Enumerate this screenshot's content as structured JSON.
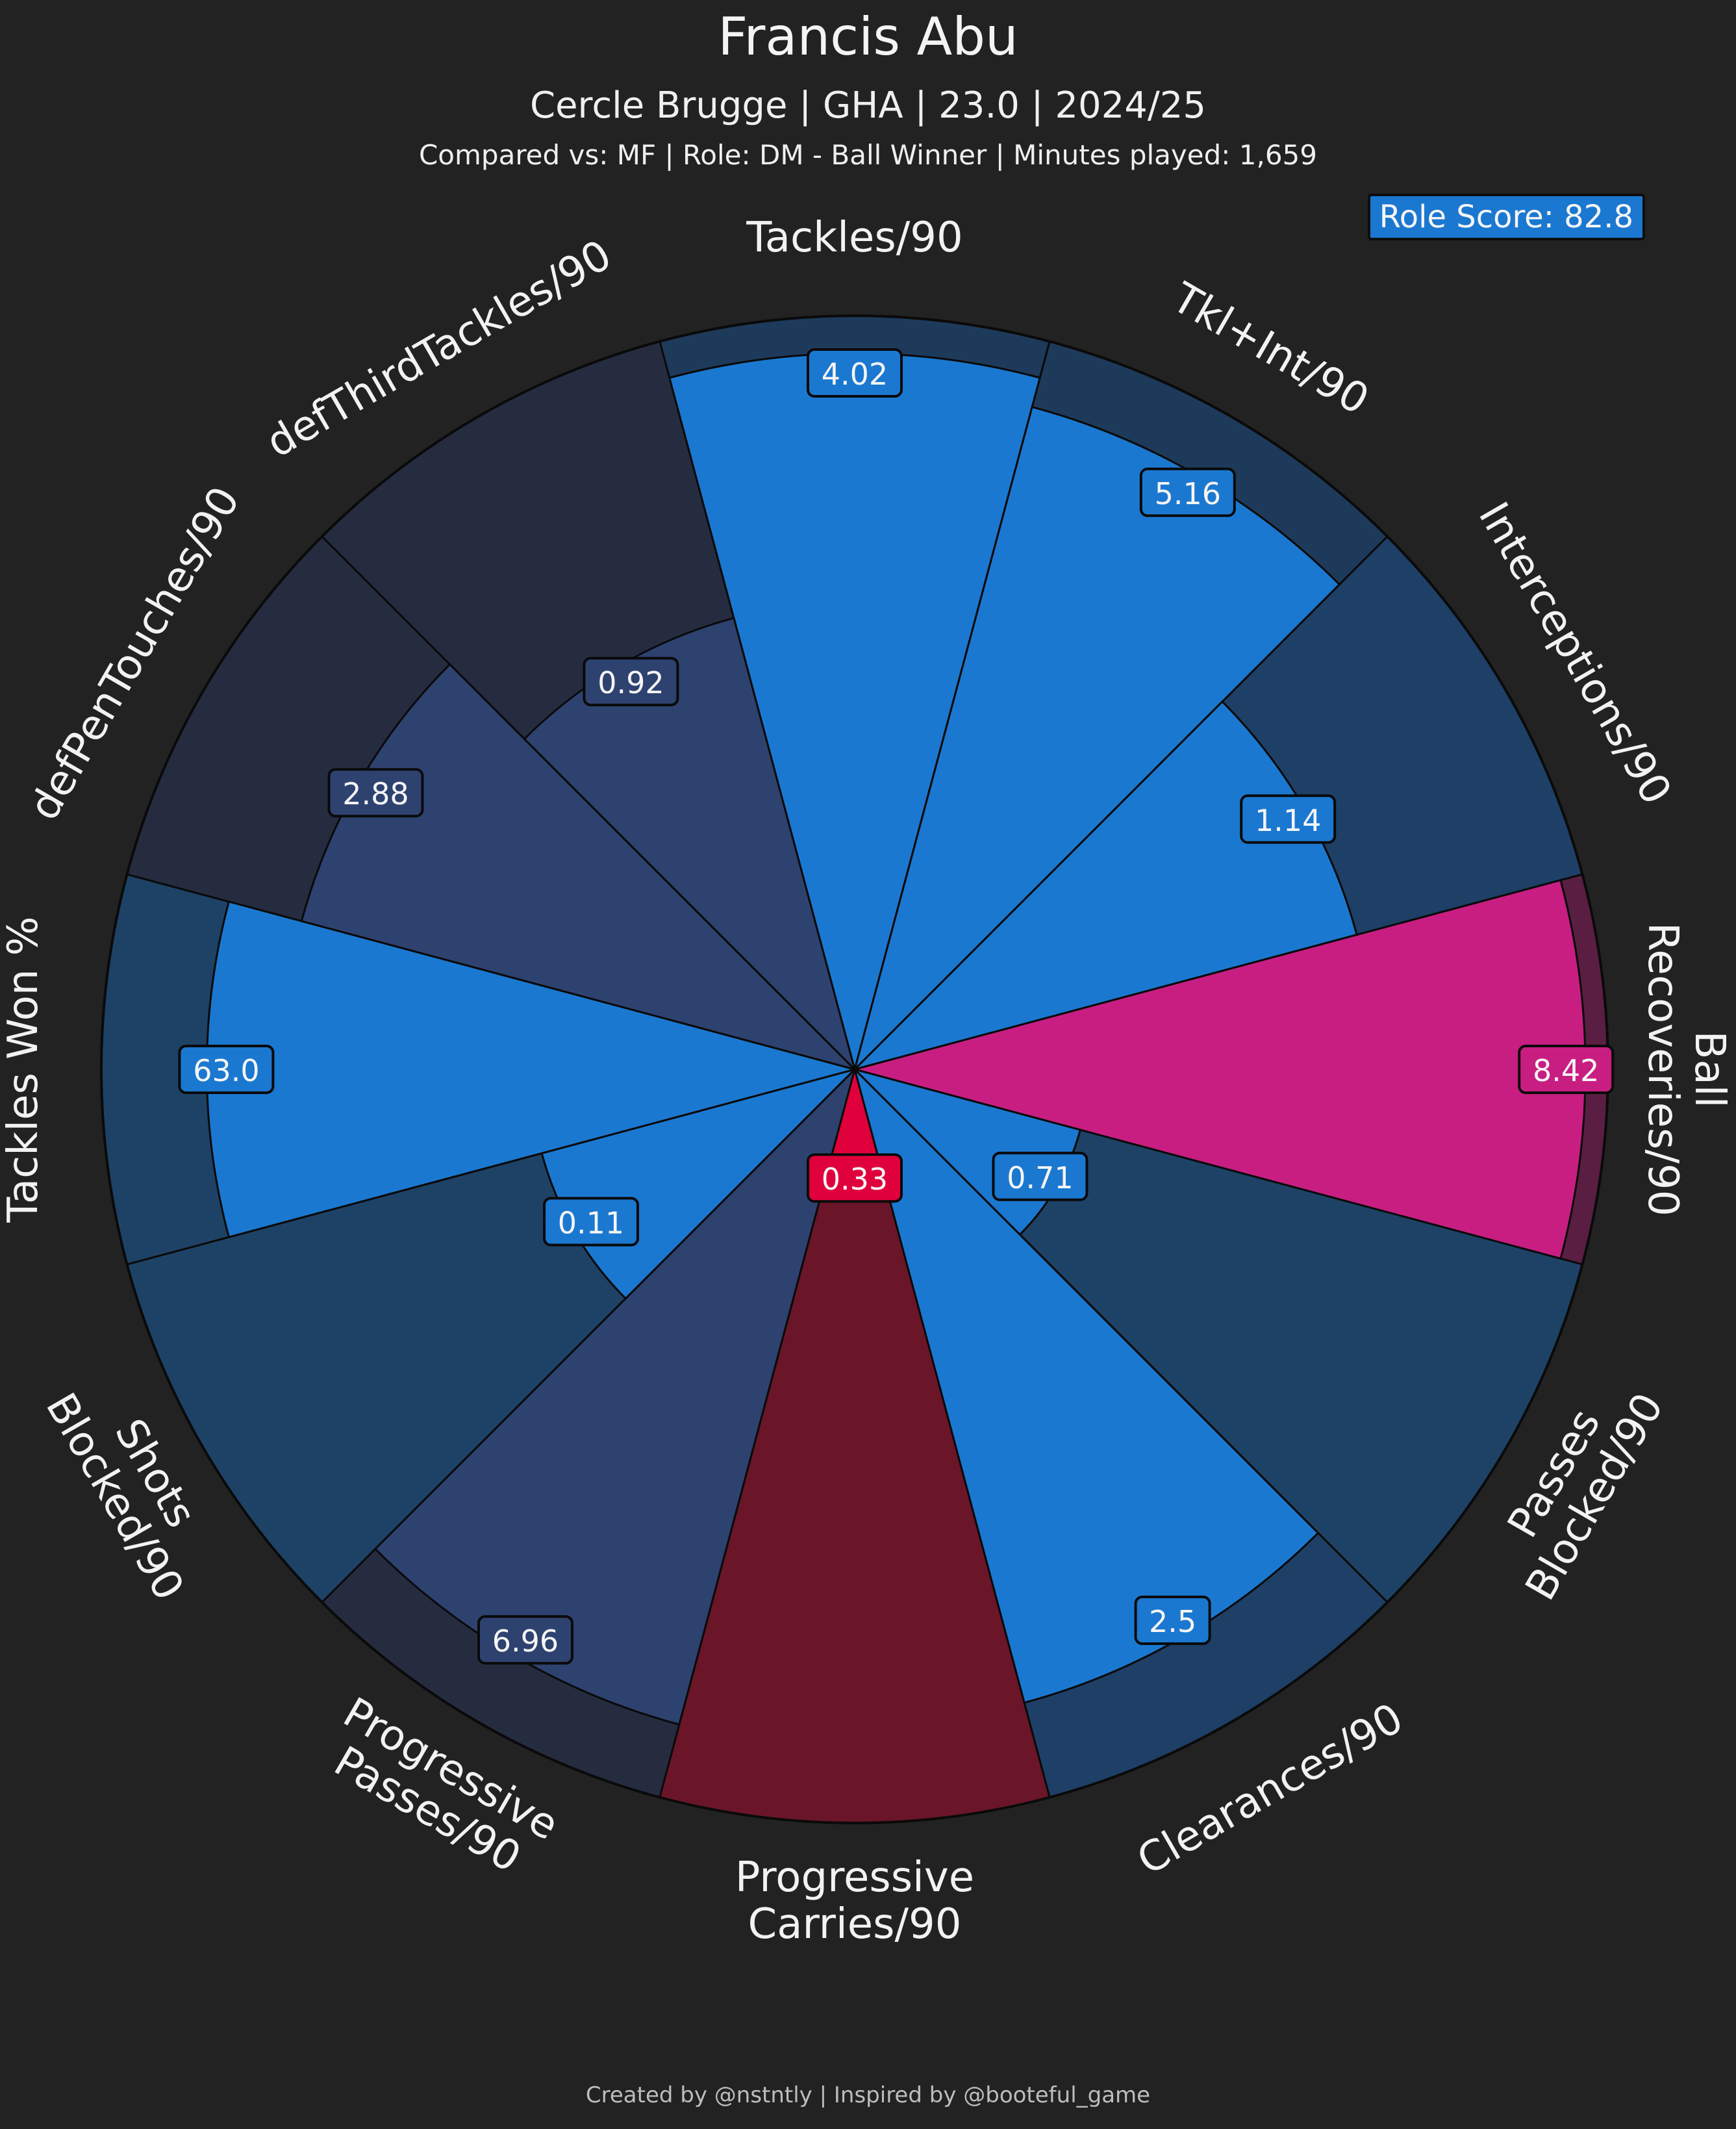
{
  "header": {
    "title": "Francis Abu",
    "subtitle": "Cercle Brugge | GHA | 23.0 | 2024/25",
    "comparison": "Compared vs: MF | Role: DM - Ball Winner | Minutes played: 1,659",
    "role_score": "Role Score: 82.8"
  },
  "footer": {
    "credit": "Created by @nstntly | Inspired by @booteful_game"
  },
  "chart_data": {
    "type": "polar-bar",
    "start_direction": "top",
    "rotation": "clockwise",
    "radial_range": [
      0,
      100
    ],
    "radial_unit": "percentile",
    "segments": [
      {
        "label": "Tackles/90",
        "value_label": "4.02",
        "percentile": 95,
        "ring": "#1e3a5a",
        "fill": "#1b78d0"
      },
      {
        "label": "Tkl+Int/90",
        "value_label": "5.16",
        "percentile": 91,
        "ring": "#1e3a5a",
        "fill": "#1b78d0"
      },
      {
        "label": "Interceptions/90",
        "value_label": "1.14",
        "percentile": 69,
        "ring": "#1e3f66",
        "fill": "#1b78d0"
      },
      {
        "label": "Ball Recoveries/90",
        "value_label": "8.42",
        "percentile": 97,
        "ring": "#5a1e42",
        "fill": "#c81e82"
      },
      {
        "label": "Passes Blocked/90",
        "value_label": "0.71",
        "percentile": 31,
        "ring": "#1e4266",
        "fill": "#1b78d0"
      },
      {
        "label": "Clearances/90",
        "value_label": "2.5",
        "percentile": 87,
        "ring": "#1e3f66",
        "fill": "#1b78d0"
      },
      {
        "label": "Progressive Carries/90",
        "value_label": "0.33",
        "percentile": 17,
        "ring": "#6a1628",
        "fill": "#e0003c"
      },
      {
        "label": "Progressive Passes/90",
        "value_label": "6.96",
        "percentile": 90,
        "ring": "#262c40",
        "fill": "#2e4270"
      },
      {
        "label": "Shots Blocked/90",
        "value_label": "0.11",
        "percentile": 43,
        "ring": "#1e4266",
        "fill": "#1b78d0"
      },
      {
        "label": "Tackles Won %",
        "value_label": "63.0",
        "percentile": 86,
        "ring": "#1e4266",
        "fill": "#1b78d0"
      },
      {
        "label": "defPenTouches/90",
        "value_label": "2.88",
        "percentile": 76,
        "ring": "#262c40",
        "fill": "#2e4270"
      },
      {
        "label": "defThirdTackles/90",
        "value_label": "0.92",
        "percentile": 62,
        "ring": "#262c40",
        "fill": "#2e4270"
      }
    ]
  }
}
